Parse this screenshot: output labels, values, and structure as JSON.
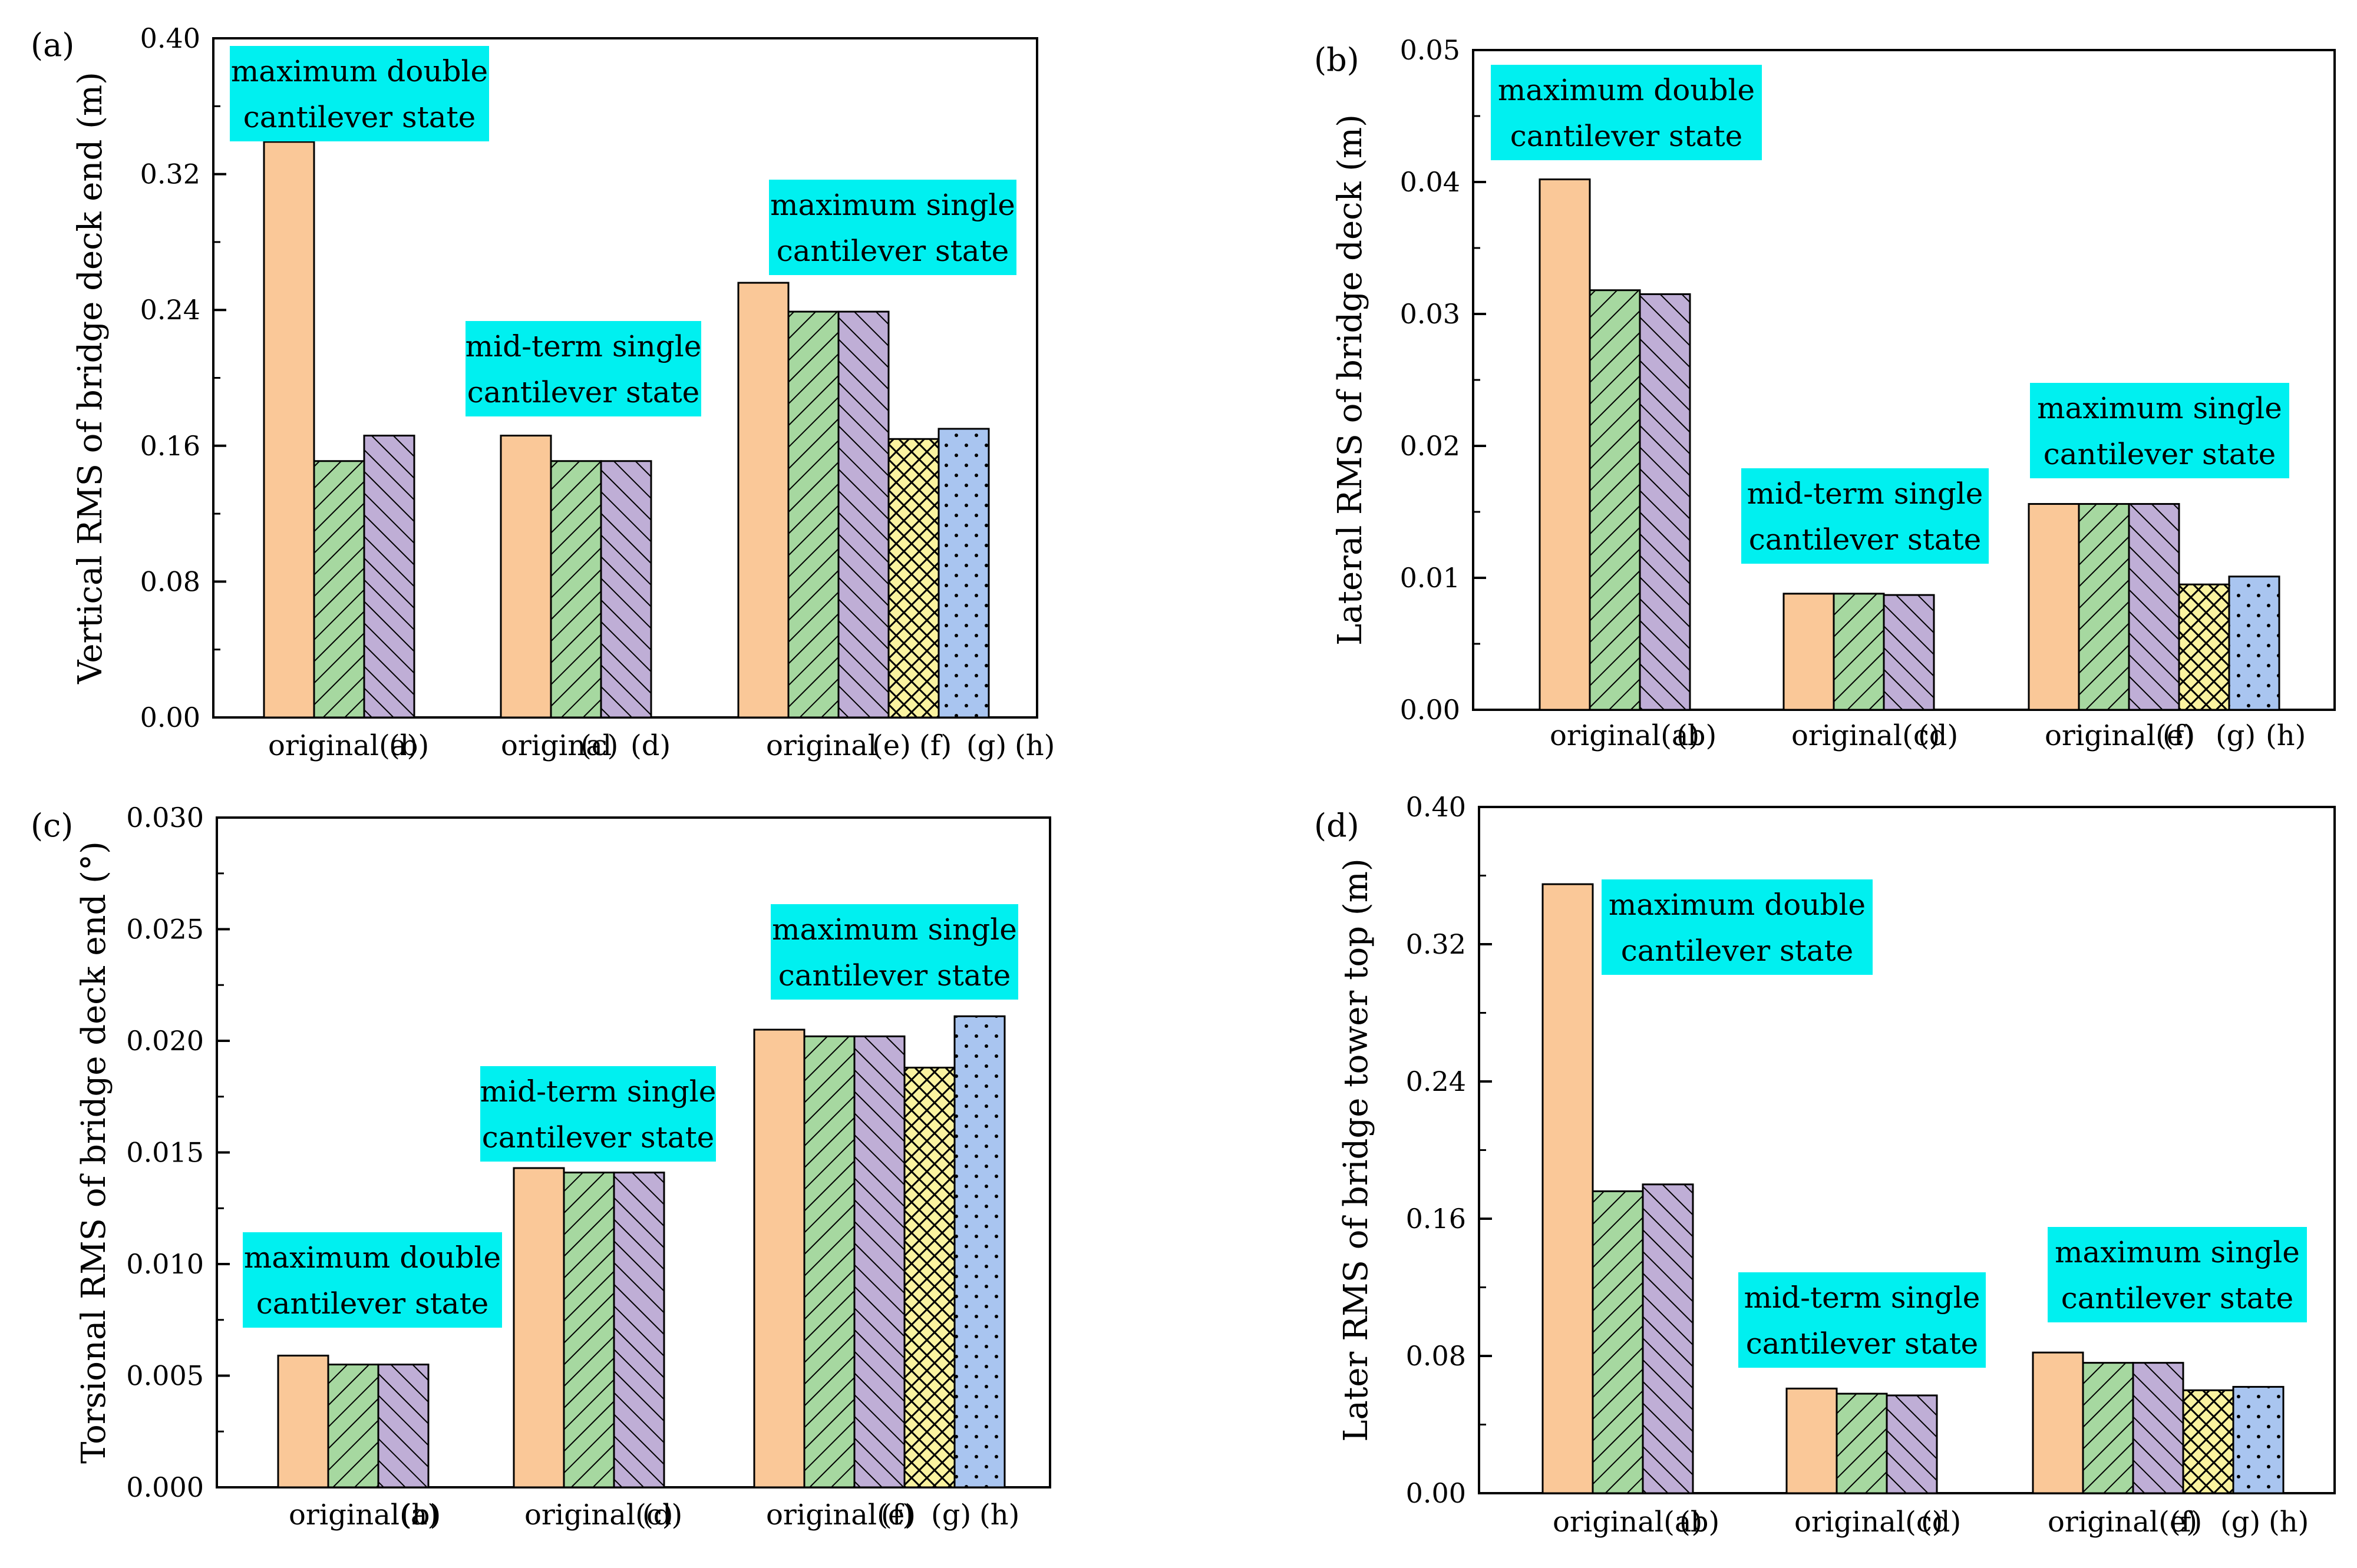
{
  "colors": {
    "original": "#FAC898",
    "b_green": "#A6D8A0",
    "c_purple": "#BFAED6",
    "g_yellow": "#FBF3A0",
    "h_blue": "#A9C5F0",
    "annotation_bg": "#00F0F0",
    "axis": "#000000"
  },
  "chart_data": [
    {
      "panel": "(a)",
      "type": "bar",
      "ylabel": "Vertical RMS of bridge deck end (m)",
      "ylim": [
        0,
        0.4
      ],
      "yticks": [
        "0.00",
        "0.08",
        "0.16",
        "0.24",
        "0.32",
        "0.40"
      ],
      "groups": [
        {
          "annotation": [
            "maximum double",
            "cantilever state"
          ],
          "bars": [
            {
              "label": "original(a)",
              "value": 0.339,
              "pattern": "original"
            },
            {
              "label": "(b)",
              "value": 0.151,
              "pattern": "b"
            },
            {
              "label": "",
              "value": 0.166,
              "pattern": "c"
            }
          ],
          "category_labels": [
            "original(a)",
            "(b)"
          ]
        },
        {
          "annotation": [
            "mid-term single",
            "cantilever state"
          ],
          "bars": [
            {
              "label": "original",
              "value": 0.166,
              "pattern": "original"
            },
            {
              "label": "(c)",
              "value": 0.151,
              "pattern": "b"
            },
            {
              "label": "(d)",
              "value": 0.151,
              "pattern": "c"
            }
          ],
          "category_labels": [
            "original",
            "(c)",
            "(d)"
          ]
        },
        {
          "annotation": [
            "maximum single",
            "cantilever state"
          ],
          "bars": [
            {
              "label": "original",
              "value": 0.256,
              "pattern": "original"
            },
            {
              "label": "(e)",
              "value": 0.239,
              "pattern": "b"
            },
            {
              "label": "(f)",
              "value": 0.239,
              "pattern": "c"
            },
            {
              "label": "(g)",
              "value": 0.164,
              "pattern": "g"
            },
            {
              "label": "(h)",
              "value": 0.17,
              "pattern": "h"
            }
          ],
          "category_labels": [
            "original",
            "(e)",
            "(f)",
            "(g)",
            "(h)"
          ]
        }
      ]
    },
    {
      "panel": "(b)",
      "type": "bar",
      "ylabel": "Lateral RMS of bridge deck (m)",
      "ylim": [
        0,
        0.05
      ],
      "yticks": [
        "0.00",
        "0.01",
        "0.02",
        "0.03",
        "0.04",
        "0.05"
      ],
      "groups": [
        {
          "annotation": [
            "maximum double",
            "cantilever state"
          ],
          "bars": [
            {
              "label": "original(a)",
              "value": 0.0402,
              "pattern": "original"
            },
            {
              "label": "(b)",
              "value": 0.0318,
              "pattern": "b"
            },
            {
              "label": "",
              "value": 0.0315,
              "pattern": "c"
            }
          ],
          "category_labels": [
            "original(a)",
            "(b)"
          ]
        },
        {
          "annotation": [
            "mid-term single",
            "cantilever state"
          ],
          "bars": [
            {
              "label": "original(c)",
              "value": 0.0088,
              "pattern": "original"
            },
            {
              "label": "(d)",
              "value": 0.0088,
              "pattern": "b"
            },
            {
              "label": "",
              "value": 0.0087,
              "pattern": "c"
            }
          ],
          "category_labels": [
            "original(c)",
            "(d)"
          ]
        },
        {
          "annotation": [
            "maximum single",
            "cantilever state"
          ],
          "bars": [
            {
              "label": "original(e)",
              "value": 0.0156,
              "pattern": "original"
            },
            {
              "label": "(f)",
              "value": 0.0156,
              "pattern": "b"
            },
            {
              "label": "",
              "value": 0.0156,
              "pattern": "c"
            },
            {
              "label": "(g)",
              "value": 0.0095,
              "pattern": "g"
            },
            {
              "label": "(h)",
              "value": 0.0101,
              "pattern": "h"
            }
          ],
          "category_labels": [
            "original(e)",
            "(f)",
            "(g)",
            "(h)"
          ]
        }
      ]
    },
    {
      "panel": "(c)",
      "type": "bar",
      "ylabel": "Torsional RMS of bridge deck end (°)",
      "ylim": [
        0,
        0.03
      ],
      "yticks": [
        "0.000",
        "0.005",
        "0.010",
        "0.015",
        "0.020",
        "0.025",
        "0.030"
      ],
      "groups": [
        {
          "annotation": [
            "maximum double",
            "cantilever state"
          ],
          "bars": [
            {
              "label": "original(a)",
              "value": 0.0059,
              "pattern": "original"
            },
            {
              "label": "(b)",
              "value": 0.0055,
              "pattern": "b"
            },
            {
              "label": "",
              "value": 0.0055,
              "pattern": "c"
            }
          ],
          "category_labels": [
            "original(a)",
            "(b)"
          ]
        },
        {
          "annotation": [
            "mid-term single",
            "cantilever state"
          ],
          "bars": [
            {
              "label": "original(c)",
              "value": 0.0143,
              "pattern": "original"
            },
            {
              "label": "(d)",
              "value": 0.0141,
              "pattern": "b"
            },
            {
              "label": "",
              "value": 0.0141,
              "pattern": "c"
            }
          ],
          "category_labels": [
            "original(c)",
            "(d)"
          ]
        },
        {
          "annotation": [
            "maximum single",
            "cantilever state"
          ],
          "bars": [
            {
              "label": "original(e)",
              "value": 0.0205,
              "pattern": "original"
            },
            {
              "label": "(f)",
              "value": 0.0202,
              "pattern": "b"
            },
            {
              "label": "",
              "value": 0.0202,
              "pattern": "c"
            },
            {
              "label": "(g)",
              "value": 0.0188,
              "pattern": "g"
            },
            {
              "label": "(h)",
              "value": 0.0211,
              "pattern": "h"
            }
          ],
          "category_labels": [
            "original(e)",
            "(f)",
            "(g)",
            "(h)"
          ]
        }
      ]
    },
    {
      "panel": "(d)",
      "type": "bar",
      "ylabel": "Later RMS of bridge tower top (m)",
      "ylim": [
        0,
        0.4
      ],
      "yticks": [
        "0.00",
        "0.08",
        "0.16",
        "0.24",
        "0.32",
        "0.40"
      ],
      "groups": [
        {
          "annotation": [
            "maximum double",
            "cantilever state"
          ],
          "bars": [
            {
              "label": "original(a)",
              "value": 0.355,
              "pattern": "original"
            },
            {
              "label": "(b)",
              "value": 0.176,
              "pattern": "b"
            },
            {
              "label": "",
              "value": 0.18,
              "pattern": "c"
            }
          ],
          "category_labels": [
            "original(a)",
            "(b)"
          ]
        },
        {
          "annotation": [
            "mid-term single",
            "cantilever state"
          ],
          "bars": [
            {
              "label": "original(c)",
              "value": 0.061,
              "pattern": "original"
            },
            {
              "label": "(d)",
              "value": 0.058,
              "pattern": "b"
            },
            {
              "label": "",
              "value": 0.057,
              "pattern": "c"
            }
          ],
          "category_labels": [
            "original(c)",
            "(d)"
          ]
        },
        {
          "annotation": [
            "maximum single",
            "cantilever state"
          ],
          "bars": [
            {
              "label": "original(e)",
              "value": 0.082,
              "pattern": "original"
            },
            {
              "label": "(f)",
              "value": 0.076,
              "pattern": "b"
            },
            {
              "label": "",
              "value": 0.076,
              "pattern": "c"
            },
            {
              "label": "(g)",
              "value": 0.06,
              "pattern": "g"
            },
            {
              "label": "(h)",
              "value": 0.062,
              "pattern": "h"
            }
          ],
          "category_labels": [
            "original(e)",
            "(f)",
            "(g)",
            "(h)"
          ]
        }
      ]
    }
  ]
}
